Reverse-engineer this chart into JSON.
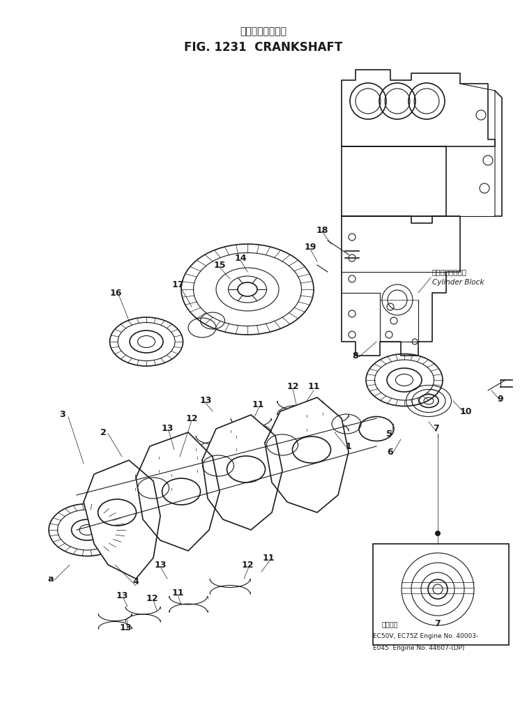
{
  "title_japanese": "クランクシャフト",
  "title_english": "FIG. 1231  CRANKSHAFT",
  "fig_width": 7.56,
  "fig_height": 10.14,
  "dpi": 100,
  "bg_color": "#ffffff",
  "line_color": "#1a1a1a",
  "cylinder_block_jp": "シリンダブロック",
  "cylinder_block_en": "Cylinder Block",
  "applicable_jp": "適用底柠",
  "applicable_line1": "EC50V, EC75Z Engine No. 40003-",
  "applicable_line2": "E045  Engine No. 44607-(DP)"
}
